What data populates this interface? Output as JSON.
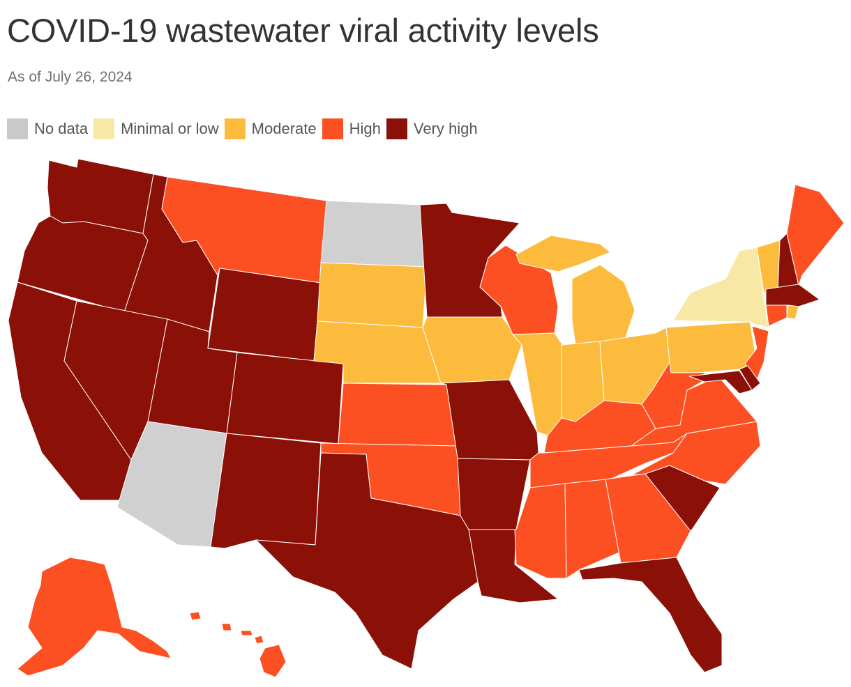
{
  "title": "COVID-19 wastewater viral activity levels",
  "subtitle": "As of July 26, 2024",
  "legend": [
    {
      "key": "none",
      "label": "No data",
      "color": "#c9c9c9"
    },
    {
      "key": "low",
      "label": "Minimal or low",
      "color": "#f7e8a6"
    },
    {
      "key": "mod",
      "label": "Moderate",
      "color": "#fdbb3e"
    },
    {
      "key": "high",
      "label": "High",
      "color": "#fd5022"
    },
    {
      "key": "vhigh",
      "label": "Very high",
      "color": "#8b1108"
    }
  ],
  "colors": {
    "none": "#cfd0cf",
    "low": "#f7e8a6",
    "mod": "#fdbb3e",
    "high": "#fd5022",
    "vhigh": "#8b1108"
  },
  "states": {
    "WA": "vhigh",
    "OR": "vhigh",
    "CA": "vhigh",
    "ID": "vhigh",
    "NV": "vhigh",
    "UT": "vhigh",
    "WY": "vhigh",
    "CO": "vhigh",
    "NM": "vhigh",
    "TX": "vhigh",
    "MN": "vhigh",
    "MO": "vhigh",
    "AR": "vhigh",
    "LA": "vhigh",
    "FL": "vhigh",
    "SC": "vhigh",
    "NH": "vhigh",
    "MA": "vhigh",
    "MD": "vhigh",
    "DE": "vhigh",
    "MT": "high",
    "KS": "high",
    "OK": "high",
    "WI": "high",
    "KY": "high",
    "TN": "high",
    "WV": "high",
    "VA": "high",
    "NC": "high",
    "MS": "high",
    "AL": "high",
    "GA": "high",
    "ME": "high",
    "CT": "high",
    "NJ": "high",
    "AK": "high",
    "HI": "high",
    "SD": "mod",
    "NE": "mod",
    "IA": "mod",
    "IL": "mod",
    "IN": "mod",
    "OH": "mod",
    "MI": "mod",
    "PA": "mod",
    "VT": "mod",
    "RI": "mod",
    "NY": "low",
    "ND": "none",
    "AZ": "none"
  }
}
